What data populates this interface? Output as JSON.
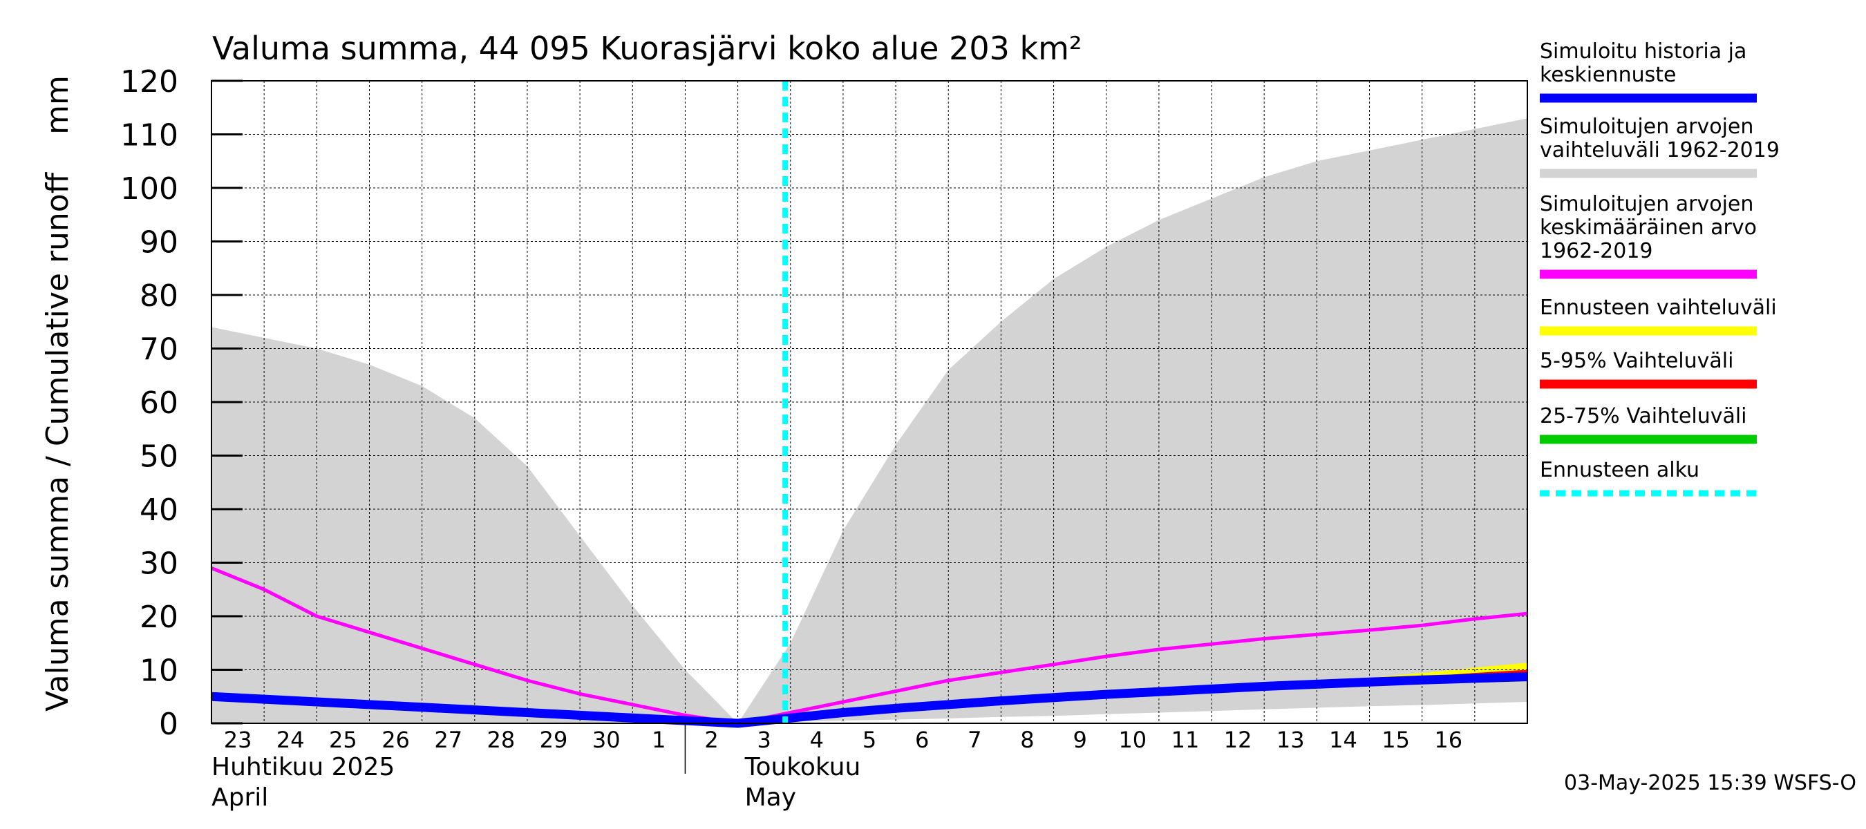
{
  "chart_data": {
    "type": "area",
    "title": "Valuma summa, 44 095 Kuorasjärvi koko alue 203 km²",
    "ylabel": "Valuma summa / Cumulative runoff",
    "yunit": "mm",
    "ylim": [
      0,
      120
    ],
    "yticks": [
      0,
      10,
      20,
      30,
      40,
      50,
      60,
      70,
      80,
      90,
      100,
      110,
      120
    ],
    "grid": true,
    "legend_position": "right",
    "x_dates": [
      "04-22",
      "04-23",
      "04-24",
      "04-25",
      "04-26",
      "04-27",
      "04-28",
      "04-29",
      "04-30",
      "05-01",
      "05-02",
      "05-03",
      "05-04",
      "05-05",
      "05-06",
      "05-07",
      "05-08",
      "05-09",
      "05-10",
      "05-11",
      "05-12",
      "05-13",
      "05-14",
      "05-15",
      "05-16",
      "05-17"
    ],
    "x_tick_labels": [
      "23",
      "24",
      "25",
      "26",
      "27",
      "28",
      "29",
      "30",
      "1",
      "2",
      "3",
      "4",
      "5",
      "6",
      "7",
      "8",
      "9",
      "10",
      "11",
      "12",
      "13",
      "14",
      "15",
      "16"
    ],
    "month_labels": [
      {
        "fi": "Huhtikuu  2025",
        "en": "April"
      },
      {
        "fi": "Toukokuu",
        "en": "May"
      }
    ],
    "forecast_start": "05-03",
    "series": [
      {
        "name": "Simuloitujen arvojen vaihteluväli 1962-2019",
        "role": "range_band",
        "color": "#d3d3d3",
        "upper": [
          74,
          72,
          70,
          67,
          63,
          57,
          48,
          35,
          22,
          10,
          0,
          15,
          36,
          52,
          66,
          75,
          83,
          89,
          94,
          98,
          102,
          105,
          107,
          109,
          111,
          113
        ],
        "lower": [
          0,
          0,
          0,
          0,
          0,
          0,
          0,
          0,
          0,
          0,
          0,
          0.3,
          0.5,
          0.7,
          0.9,
          1.2,
          1.4,
          1.7,
          2,
          2.3,
          2.6,
          2.9,
          3.2,
          3.4,
          3.7,
          4
        ]
      },
      {
        "name": "Simuloitujen arvojen keskimääräinen arvo 1962-2019",
        "role": "mean",
        "color": "#ff00ff",
        "values": [
          29,
          25,
          20,
          17,
          14,
          11,
          8,
          5.5,
          3.5,
          1.5,
          0,
          2,
          4,
          6,
          8,
          9.5,
          11,
          12.5,
          13.8,
          14.8,
          15.8,
          16.6,
          17.4,
          18.3,
          19.5,
          20.5
        ]
      },
      {
        "name": "Simuloitu historia ja keskiennuste",
        "role": "history",
        "color": "#0000ff",
        "values": [
          5,
          4.5,
          4,
          3.5,
          3,
          2.5,
          2,
          1.5,
          1,
          0.5,
          0,
          1,
          2,
          2.8,
          3.5,
          4.2,
          4.8,
          5.4,
          5.9,
          6.4,
          6.9,
          7.3,
          7.7,
          8.1,
          8.4,
          8.7
        ]
      },
      {
        "name": "Ennusteen vaihteluväli",
        "role": "forecast_band",
        "color": "#ffff00",
        "upper": [
          5.5,
          6.1,
          6.8,
          7.6,
          8.5,
          9.4,
          10.4,
          11.3
        ],
        "lower": [
          5.3,
          5.8,
          6.2,
          6.6,
          7.0,
          7.3,
          7.6,
          7.8
        ],
        "x_from": "05-10"
      },
      {
        "name": "5-95% Vaihteluväli",
        "role": "forecast_band",
        "color": "#ff0000",
        "upper": [
          5.5,
          6,
          6.6,
          7.3,
          8,
          8.7,
          9.4,
          10
        ],
        "lower": [
          5.4,
          5.9,
          6.3,
          6.7,
          7.1,
          7.4,
          7.7,
          7.9
        ],
        "x_from": "05-10"
      },
      {
        "name": "25-75% Vaihteluväli",
        "role": "forecast_band",
        "color": "#00cc00",
        "upper": [
          5.4,
          5.9,
          6.5,
          7.0,
          7.5,
          8.0,
          8.5,
          8.9
        ],
        "lower": [
          5.4,
          5.8,
          6.3,
          6.7,
          7.1,
          7.5,
          7.8,
          8.1
        ],
        "x_from": "05-10"
      }
    ],
    "legend": [
      {
        "lines": [
          "Simuloitu historia ja",
          "keskiennuste"
        ],
        "color": "#0000ff",
        "style": "solid"
      },
      {
        "lines": [
          "Simuloitujen arvojen",
          "vaihteluväli 1962-2019"
        ],
        "color": "#d3d3d3",
        "style": "solid"
      },
      {
        "lines": [
          "Simuloitujen arvojen",
          "keskimääräinen arvo",
          "   1962-2019"
        ],
        "color": "#ff00ff",
        "style": "solid"
      },
      {
        "lines": [
          "Ennusteen vaihteluväli"
        ],
        "color": "#ffff00",
        "style": "solid"
      },
      {
        "lines": [
          "5-95% Vaihteluväli"
        ],
        "color": "#ff0000",
        "style": "solid"
      },
      {
        "lines": [
          "25-75% Vaihteluväli"
        ],
        "color": "#00cc00",
        "style": "solid"
      },
      {
        "lines": [
          "Ennusteen alku"
        ],
        "color": "#00ffff",
        "style": "dashed"
      }
    ],
    "timestamp": "03-May-2025 15:39 WSFS-O"
  }
}
